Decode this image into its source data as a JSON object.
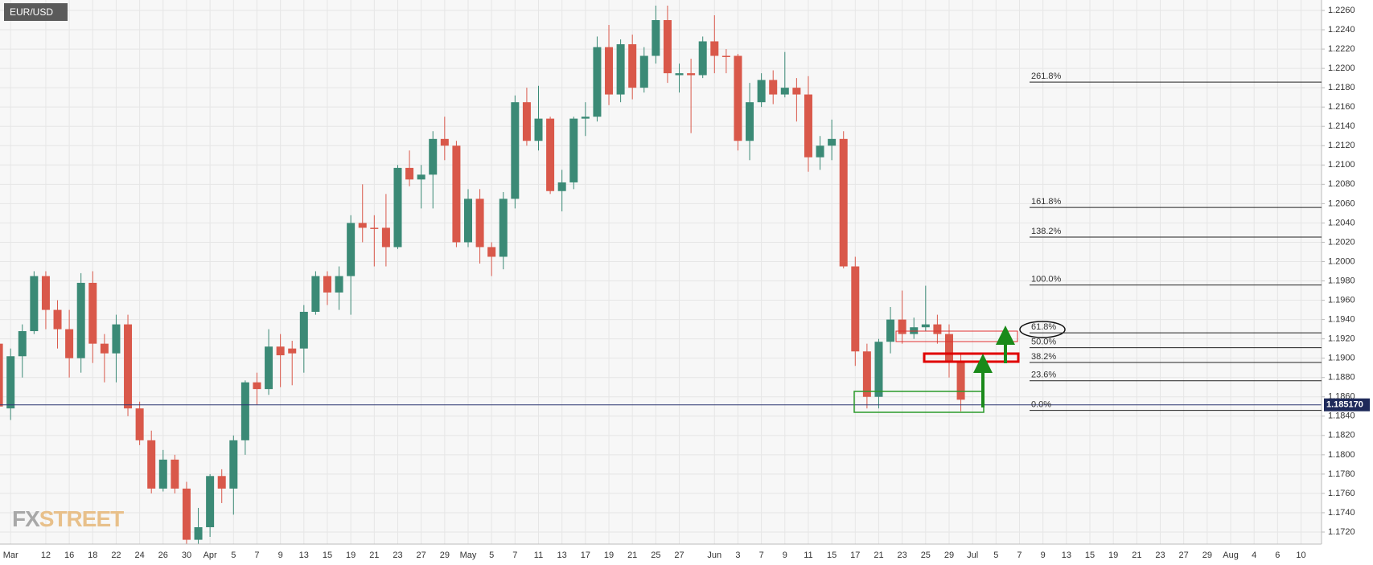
{
  "chart_data": {
    "type": "candlestick",
    "title": "EUR/USD",
    "watermark": [
      "FX",
      "STREET"
    ],
    "categories": [
      null,
      "Mar",
      null,
      null,
      "12",
      null,
      "16",
      null,
      "18",
      null,
      "22",
      null,
      "24",
      null,
      "26",
      null,
      "30",
      null,
      "Apr",
      null,
      "5",
      null,
      "7",
      null,
      "9",
      null,
      "13",
      null,
      "15",
      null,
      "19",
      null,
      "21",
      null,
      "23",
      null,
      "27",
      null,
      "29",
      null,
      "May",
      null,
      "5",
      null,
      "7",
      null,
      "11",
      null,
      "13",
      null,
      "17",
      null,
      "19",
      null,
      "21",
      null,
      "25",
      null,
      "27",
      null,
      null,
      "Jun",
      null,
      "3",
      null,
      "7",
      null,
      "9",
      null,
      "11",
      null,
      "15",
      null,
      "17",
      null,
      "21",
      null,
      "23",
      null,
      "25",
      null,
      "29",
      null,
      "Jul",
      null,
      "5",
      null,
      "7",
      null,
      "9",
      null,
      "13",
      null,
      "15",
      null,
      "19",
      null,
      "21",
      null,
      "23",
      null,
      "27",
      null,
      "29",
      null,
      "Aug",
      null,
      "4",
      null,
      "6",
      null,
      "10",
      null
    ],
    "open": [
      1.1915,
      1.1848,
      1.1902,
      1.1928,
      1.1985,
      1.195,
      1.193,
      1.19,
      1.1978,
      1.1915,
      1.1905,
      1.1935,
      1.1848,
      1.1815,
      1.1765,
      1.1795,
      1.1765,
      1.1712,
      1.1725,
      1.1778,
      1.1765,
      1.1815,
      1.1875,
      1.1868,
      1.1912,
      1.191,
      1.191,
      1.1948,
      1.1985,
      1.1968,
      1.1985,
      1.204,
      1.2035,
      1.2035,
      1.2015,
      1.2097,
      1.2085,
      1.209,
      1.2127,
      1.212,
      1.202,
      1.2065,
      1.2015,
      1.2005,
      1.2065,
      1.2165,
      1.2125,
      1.2148,
      1.2073,
      1.2082,
      1.2148,
      1.215,
      1.2222,
      1.2173,
      1.2225,
      1.218,
      1.2213,
      1.225,
      1.2193,
      1.2195,
      1.2193,
      1.2228,
      1.2213,
      1.2213,
      1.2125,
      1.2165,
      1.2188,
      1.2173,
      1.218,
      1.2173,
      1.2108,
      1.212,
      1.2127,
      1.1995,
      1.1907,
      1.186,
      1.1917,
      1.194,
      1.1925,
      1.1932,
      1.1935,
      1.1925,
      1.1897,
      null,
      null,
      null,
      null,
      null,
      null,
      null,
      null,
      null,
      null,
      null,
      null,
      null,
      null,
      null,
      null,
      null,
      null,
      null,
      null,
      null,
      null,
      null,
      null,
      null,
      null,
      null,
      null,
      null,
      null
    ],
    "high": [
      1.1935,
      1.191,
      1.1935,
      1.199,
      1.199,
      1.196,
      1.195,
      1.1988,
      1.199,
      1.1925,
      1.1945,
      1.1945,
      1.1855,
      1.1825,
      1.1805,
      1.18,
      1.1772,
      1.1745,
      1.178,
      1.1785,
      1.182,
      1.1877,
      1.1885,
      1.193,
      1.1925,
      1.1918,
      1.1955,
      1.199,
      1.199,
      1.1995,
      1.2048,
      1.208,
      1.2048,
      1.207,
      1.21,
      1.2115,
      1.21,
      1.2135,
      1.215,
      1.2125,
      1.2075,
      1.2075,
      1.202,
      1.2072,
      1.2172,
      1.218,
      1.2182,
      1.215,
      1.2095,
      1.215,
      1.2165,
      1.2233,
      1.2245,
      1.223,
      1.2235,
      1.2222,
      1.2265,
      1.2265,
      1.2205,
      1.221,
      1.2233,
      1.2255,
      1.222,
      1.2215,
      1.2185,
      1.2195,
      1.2198,
      1.2217,
      1.219,
      1.2192,
      1.213,
      1.2147,
      1.2135,
      1.2005,
      1.1915,
      1.192,
      1.1953,
      1.197,
      1.1942,
      1.1975,
      1.1945,
      1.1935,
      1.1905,
      null,
      null,
      null,
      null,
      null,
      null,
      null,
      null,
      null,
      null,
      null,
      null,
      null,
      null,
      null,
      null,
      null,
      null,
      null,
      null,
      null,
      null,
      null,
      null,
      null,
      null,
      null,
      null,
      null,
      null
    ],
    "low": [
      1.1838,
      1.1836,
      1.188,
      1.1925,
      1.193,
      1.191,
      1.188,
      1.1885,
      1.1895,
      1.1875,
      1.1875,
      1.184,
      1.181,
      1.176,
      1.1762,
      1.176,
      1.1705,
      1.1704,
      1.1715,
      1.175,
      1.1738,
      1.18,
      1.1852,
      1.1862,
      1.187,
      1.1872,
      1.1885,
      1.1945,
      1.1955,
      1.195,
      1.1945,
      1.202,
      1.1995,
      1.1995,
      1.2013,
      1.2078,
      1.2055,
      1.2055,
      1.2105,
      1.2015,
      1.2015,
      1.1998,
      1.1985,
      1.1992,
      1.2055,
      1.212,
      1.2115,
      1.207,
      1.2052,
      1.2075,
      1.213,
      1.2145,
      1.2162,
      1.2165,
      1.2168,
      1.2175,
      1.2205,
      1.2185,
      1.2175,
      1.2133,
      1.219,
      1.2195,
      1.2195,
      1.2115,
      1.2105,
      1.216,
      1.2163,
      1.217,
      1.2145,
      1.2093,
      1.2095,
      1.2105,
      1.1993,
      1.1892,
      1.1848,
      1.1848,
      1.1905,
      1.1915,
      1.192,
      1.1928,
      1.1915,
      1.188,
      1.1845,
      null,
      null,
      null,
      null,
      null,
      null,
      null,
      null,
      null,
      null,
      null,
      null,
      null,
      null,
      null,
      null,
      null,
      null,
      null,
      null,
      null,
      null,
      null,
      null,
      null,
      null,
      null,
      null,
      null,
      null
    ],
    "close": [
      1.185,
      1.1902,
      1.1928,
      1.1985,
      1.195,
      1.193,
      1.19,
      1.1978,
      1.1915,
      1.1905,
      1.1935,
      1.1848,
      1.1815,
      1.1765,
      1.1795,
      1.1765,
      1.1712,
      1.1725,
      1.1778,
      1.1765,
      1.1815,
      1.1875,
      1.1868,
      1.1912,
      1.1903,
      1.1905,
      1.1948,
      1.1985,
      1.1968,
      1.1985,
      1.204,
      1.2035,
      1.2035,
      1.2015,
      1.2097,
      1.2085,
      1.209,
      1.2127,
      1.212,
      1.202,
      1.2065,
      1.2015,
      1.2005,
      1.2065,
      1.2165,
      1.2125,
      1.2148,
      1.2073,
      1.2082,
      1.2148,
      1.215,
      1.2222,
      1.2173,
      1.2225,
      1.218,
      1.2213,
      1.225,
      1.2195,
      1.2195,
      1.2193,
      1.2228,
      1.2213,
      1.2213,
      1.2125,
      1.2165,
      1.2188,
      1.2173,
      1.218,
      1.2173,
      1.2108,
      1.212,
      1.2127,
      1.1995,
      1.1907,
      1.186,
      1.1917,
      1.194,
      1.1925,
      1.1932,
      1.1935,
      1.1925,
      1.1897,
      1.1857,
      null,
      null,
      null,
      null,
      null,
      null,
      null,
      null,
      null,
      null,
      null,
      null,
      null,
      null,
      null,
      null,
      null,
      null,
      null,
      null,
      null,
      null,
      null,
      null,
      null,
      null,
      null,
      null,
      null,
      null
    ],
    "up_color": "#3b8a76",
    "down_color": "#d9584a",
    "ylim": [
      1.172,
      1.226
    ],
    "yticks": [
      {
        "value": 1.172,
        "label": "1.1720"
      },
      {
        "value": 1.174,
        "label": "1.1740"
      },
      {
        "value": 1.176,
        "label": "1.1760"
      },
      {
        "value": 1.178,
        "label": "1.1780"
      },
      {
        "value": 1.18,
        "label": "1.1800"
      },
      {
        "value": 1.182,
        "label": "1.1820"
      },
      {
        "value": 1.184,
        "label": "1.1840"
      },
      {
        "value": 1.186,
        "label": "1.1860"
      },
      {
        "value": 1.188,
        "label": "1.1880"
      },
      {
        "value": 1.19,
        "label": "1.1900"
      },
      {
        "value": 1.192,
        "label": "1.1920"
      },
      {
        "value": 1.194,
        "label": "1.1940"
      },
      {
        "value": 1.196,
        "label": "1.1960"
      },
      {
        "value": 1.198,
        "label": "1.1980"
      },
      {
        "value": 1.2,
        "label": "1.2000"
      },
      {
        "value": 1.202,
        "label": "1.2020"
      },
      {
        "value": 1.204,
        "label": "1.2040"
      },
      {
        "value": 1.206,
        "label": "1.2060"
      },
      {
        "value": 1.208,
        "label": "1.2080"
      },
      {
        "value": 1.21,
        "label": "1.2100"
      },
      {
        "value": 1.212,
        "label": "1.2120"
      },
      {
        "value": 1.214,
        "label": "1.2140"
      },
      {
        "value": 1.216,
        "label": "1.2160"
      },
      {
        "value": 1.218,
        "label": "1.2180"
      },
      {
        "value": 1.22,
        "label": "1.2200"
      },
      {
        "value": 1.222,
        "label": "1.2220"
      },
      {
        "value": 1.224,
        "label": "1.2240"
      },
      {
        "value": 1.226,
        "label": "1.2260"
      }
    ],
    "grid": true,
    "last_price": {
      "value": 1.18517,
      "label": "1.185170"
    },
    "fib_levels": [
      {
        "label": "261.8%",
        "price": 1.21858
      },
      {
        "label": "161.8%",
        "price": 1.2056
      },
      {
        "label": "138.2%",
        "price": 1.20254
      },
      {
        "label": "100.0%",
        "price": 1.19758
      },
      {
        "label": "61.8%",
        "price": 1.19262
      },
      {
        "label": "50.0%",
        "price": 1.19109
      },
      {
        "label": "38.2%",
        "price": 1.18956
      },
      {
        "label": "23.6%",
        "price": 1.18766
      },
      {
        "label": "0.0%",
        "price": 1.1846
      }
    ]
  }
}
